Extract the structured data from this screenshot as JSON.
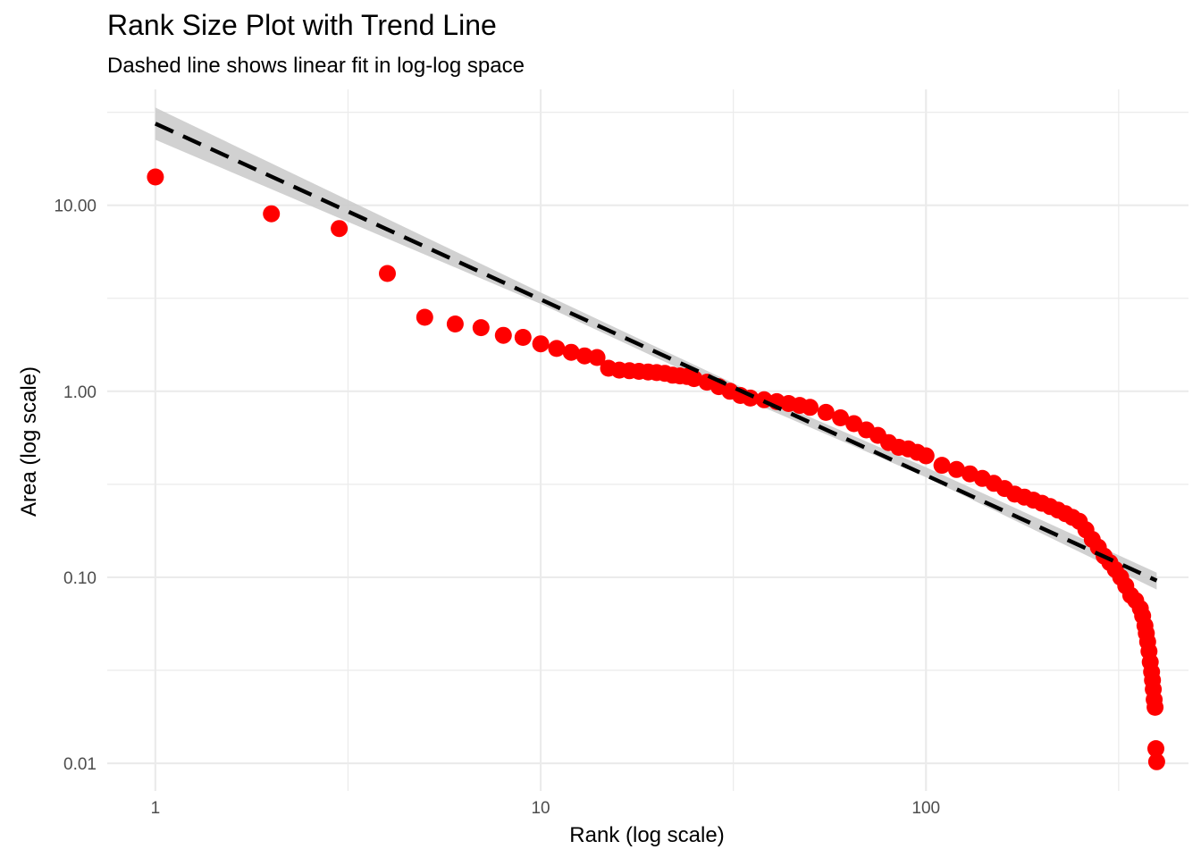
{
  "chart_data": {
    "type": "scatter",
    "title": "Rank Size Plot with Trend Line",
    "subtitle": "Dashed line shows linear fit in log-log space",
    "xlabel": "Rank (log scale)",
    "ylabel": "Area (log scale)",
    "x_scale": "log10",
    "y_scale": "log10",
    "xlim": [
      0.75,
      480
    ],
    "ylim": [
      0.0071,
      42
    ],
    "x_ticks": [
      1,
      10,
      100
    ],
    "x_tick_labels": [
      "1",
      "10",
      "100"
    ],
    "y_ticks": [
      0.01,
      0.1,
      1,
      10
    ],
    "y_tick_labels": [
      "0.01",
      "0.10",
      "1.00",
      "10.00"
    ],
    "grid": true,
    "point_color": "#ff0000",
    "series": [
      {
        "kind": "points",
        "points": [
          [
            1,
            14.2
          ],
          [
            2,
            9.0
          ],
          [
            3,
            7.5
          ],
          [
            4,
            4.3
          ],
          [
            5,
            2.5
          ],
          [
            6,
            2.3
          ],
          [
            7,
            2.2
          ],
          [
            8,
            2.0
          ],
          [
            9,
            1.95
          ],
          [
            10,
            1.8
          ],
          [
            11,
            1.7
          ],
          [
            12,
            1.62
          ],
          [
            13,
            1.55
          ],
          [
            14,
            1.52
          ],
          [
            15,
            1.33
          ],
          [
            16,
            1.3
          ],
          [
            17,
            1.29
          ],
          [
            18,
            1.28
          ],
          [
            19,
            1.27
          ],
          [
            20,
            1.26
          ],
          [
            21,
            1.25
          ],
          [
            22,
            1.22
          ],
          [
            23,
            1.21
          ],
          [
            24,
            1.2
          ],
          [
            25,
            1.17
          ],
          [
            27,
            1.12
          ],
          [
            29,
            1.06
          ],
          [
            31,
            1.0
          ],
          [
            33,
            0.95
          ],
          [
            35,
            0.92
          ],
          [
            38,
            0.9
          ],
          [
            41,
            0.88
          ],
          [
            44,
            0.86
          ],
          [
            47,
            0.84
          ],
          [
            50,
            0.82
          ],
          [
            55,
            0.77
          ],
          [
            60,
            0.72
          ],
          [
            65,
            0.67
          ],
          [
            70,
            0.62
          ],
          [
            75,
            0.58
          ],
          [
            80,
            0.53
          ],
          [
            85,
            0.5
          ],
          [
            90,
            0.49
          ],
          [
            95,
            0.47
          ],
          [
            100,
            0.45
          ],
          [
            110,
            0.4
          ],
          [
            120,
            0.38
          ],
          [
            130,
            0.36
          ],
          [
            140,
            0.34
          ],
          [
            150,
            0.32
          ],
          [
            160,
            0.3
          ],
          [
            170,
            0.28
          ],
          [
            180,
            0.27
          ],
          [
            190,
            0.26
          ],
          [
            200,
            0.25
          ],
          [
            210,
            0.24
          ],
          [
            220,
            0.23
          ],
          [
            230,
            0.22
          ],
          [
            240,
            0.21
          ],
          [
            250,
            0.2
          ],
          [
            260,
            0.18
          ],
          [
            270,
            0.16
          ],
          [
            280,
            0.145
          ],
          [
            290,
            0.13
          ],
          [
            300,
            0.12
          ],
          [
            310,
            0.11
          ],
          [
            320,
            0.1
          ],
          [
            330,
            0.09
          ],
          [
            340,
            0.08
          ],
          [
            350,
            0.075
          ],
          [
            360,
            0.068
          ],
          [
            365,
            0.062
          ],
          [
            370,
            0.055
          ],
          [
            373,
            0.05
          ],
          [
            376,
            0.045
          ],
          [
            379,
            0.04
          ],
          [
            382,
            0.035
          ],
          [
            385,
            0.031
          ],
          [
            387,
            0.028
          ],
          [
            389,
            0.025
          ],
          [
            391,
            0.022
          ],
          [
            393,
            0.02
          ],
          [
            395,
            0.012
          ],
          [
            397,
            0.0102
          ]
        ]
      },
      {
        "kind": "trend",
        "style": "dashed",
        "color": "#000000",
        "x": [
          1,
          397
        ],
        "y": [
          27.5,
          0.096
        ]
      },
      {
        "kind": "confidence_band",
        "color": "#cccccc",
        "x": [
          1,
          10,
          35,
          100,
          397
        ],
        "lower": [
          22.5,
          2.95,
          0.88,
          0.345,
          0.086
        ],
        "upper": [
          33.5,
          3.4,
          1.0,
          0.39,
          0.106
        ]
      }
    ]
  }
}
